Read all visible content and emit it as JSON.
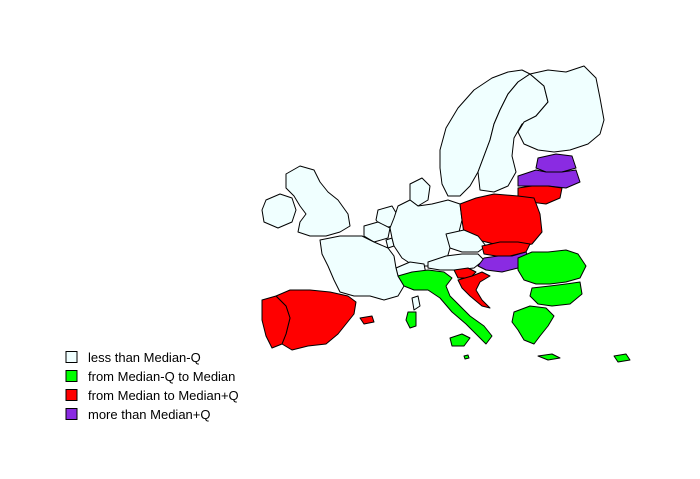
{
  "colors": {
    "less_than_median_q": "#F0FFFF",
    "median_q_to_median": "#00FF00",
    "median_to_median_q": "#FF0000",
    "more_than_median_q": "#8A2BE2"
  },
  "legend": {
    "items": [
      {
        "label": "less than Median-Q",
        "color": "#F0FFFF"
      },
      {
        "label": "from Median-Q to Median",
        "color": "#00FF00"
      },
      {
        "label": "from Median to Median+Q",
        "color": "#FF0000"
      },
      {
        "label": "more than Median+Q",
        "color": "#8A2BE2"
      }
    ]
  },
  "regions": [
    {
      "name": "norway",
      "category": "less_than_median_q"
    },
    {
      "name": "sweden",
      "category": "less_than_median_q"
    },
    {
      "name": "finland",
      "category": "less_than_median_q"
    },
    {
      "name": "estonia",
      "category": "more_than_median_q"
    },
    {
      "name": "latvia",
      "category": "more_than_median_q"
    },
    {
      "name": "lithuania",
      "category": "median_to_median_q"
    },
    {
      "name": "ireland",
      "category": "less_than_median_q"
    },
    {
      "name": "united-kingdom",
      "category": "less_than_median_q"
    },
    {
      "name": "denmark",
      "category": "less_than_median_q"
    },
    {
      "name": "netherlands",
      "category": "less_than_median_q"
    },
    {
      "name": "belgium",
      "category": "less_than_median_q"
    },
    {
      "name": "luxembourg",
      "category": "less_than_median_q"
    },
    {
      "name": "germany",
      "category": "less_than_median_q"
    },
    {
      "name": "poland",
      "category": "median_to_median_q"
    },
    {
      "name": "czechia",
      "category": "less_than_median_q"
    },
    {
      "name": "slovakia",
      "category": "median_to_median_q"
    },
    {
      "name": "austria",
      "category": "less_than_median_q"
    },
    {
      "name": "switzerland",
      "category": "less_than_median_q"
    },
    {
      "name": "france",
      "category": "less_than_median_q"
    },
    {
      "name": "hungary",
      "category": "more_than_median_q"
    },
    {
      "name": "slovenia",
      "category": "median_to_median_q"
    },
    {
      "name": "croatia",
      "category": "median_to_median_q"
    },
    {
      "name": "romania",
      "category": "median_q_to_median"
    },
    {
      "name": "bulgaria",
      "category": "median_q_to_median"
    },
    {
      "name": "italy",
      "category": "median_q_to_median"
    },
    {
      "name": "sardinia",
      "category": "median_q_to_median"
    },
    {
      "name": "corsica",
      "category": "less_than_median_q"
    },
    {
      "name": "sicily",
      "category": "median_q_to_median"
    },
    {
      "name": "spain",
      "category": "median_to_median_q"
    },
    {
      "name": "portugal",
      "category": "median_to_median_q"
    },
    {
      "name": "balearic-islands",
      "category": "median_to_median_q"
    },
    {
      "name": "greece",
      "category": "median_q_to_median"
    },
    {
      "name": "crete",
      "category": "median_q_to_median"
    },
    {
      "name": "cyprus",
      "category": "median_q_to_median"
    },
    {
      "name": "malta",
      "category": "median_q_to_median"
    }
  ]
}
